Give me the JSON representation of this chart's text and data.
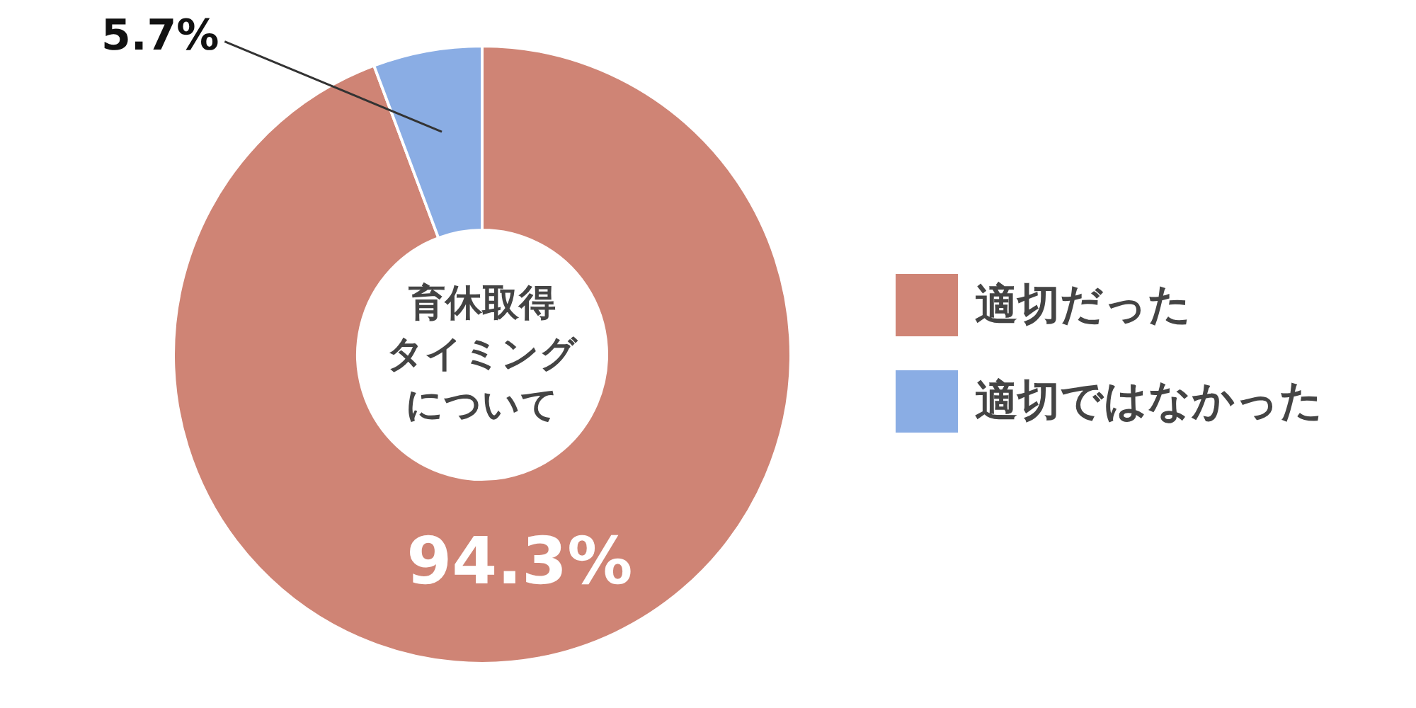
{
  "chart_data": {
    "type": "donut",
    "annotations": [
      "育休取得",
      "タイミング",
      "について"
    ],
    "categories": [
      "適切だった",
      "適切ではなかった"
    ],
    "values": [
      94.3,
      5.7
    ],
    "colors": [
      "#cf8475",
      "#8aade4"
    ],
    "value_labels": [
      "94.3%",
      "5.7%"
    ],
    "legend": "right"
  }
}
